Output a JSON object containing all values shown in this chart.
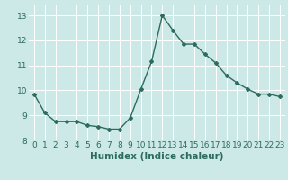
{
  "x": [
    0,
    1,
    2,
    3,
    4,
    5,
    6,
    7,
    8,
    9,
    10,
    11,
    12,
    13,
    14,
    15,
    16,
    17,
    18,
    19,
    20,
    21,
    22,
    23
  ],
  "y": [
    9.85,
    9.1,
    8.75,
    8.75,
    8.75,
    8.6,
    8.55,
    8.45,
    8.45,
    8.9,
    10.05,
    11.15,
    13.0,
    12.4,
    11.85,
    11.85,
    11.45,
    11.1,
    10.6,
    10.3,
    10.05,
    9.85,
    9.85,
    9.75
  ],
  "line_color": "#2d6b5e",
  "marker": "D",
  "marker_size": 2.0,
  "bg_color": "#cce9e8",
  "grid_color": "#ffffff",
  "xlabel": "Humidex (Indice chaleur)",
  "xlabel_fontsize": 7.5,
  "xlabel_color": "#2d6b5e",
  "xlabel_bold": true,
  "ylim": [
    8,
    13.4
  ],
  "xlim": [
    -0.5,
    23.5
  ],
  "yticks": [
    8,
    9,
    10,
    11,
    12,
    13
  ],
  "tick_fontsize": 6.5,
  "tick_color": "#2d6b5e",
  "linewidth": 1.0
}
